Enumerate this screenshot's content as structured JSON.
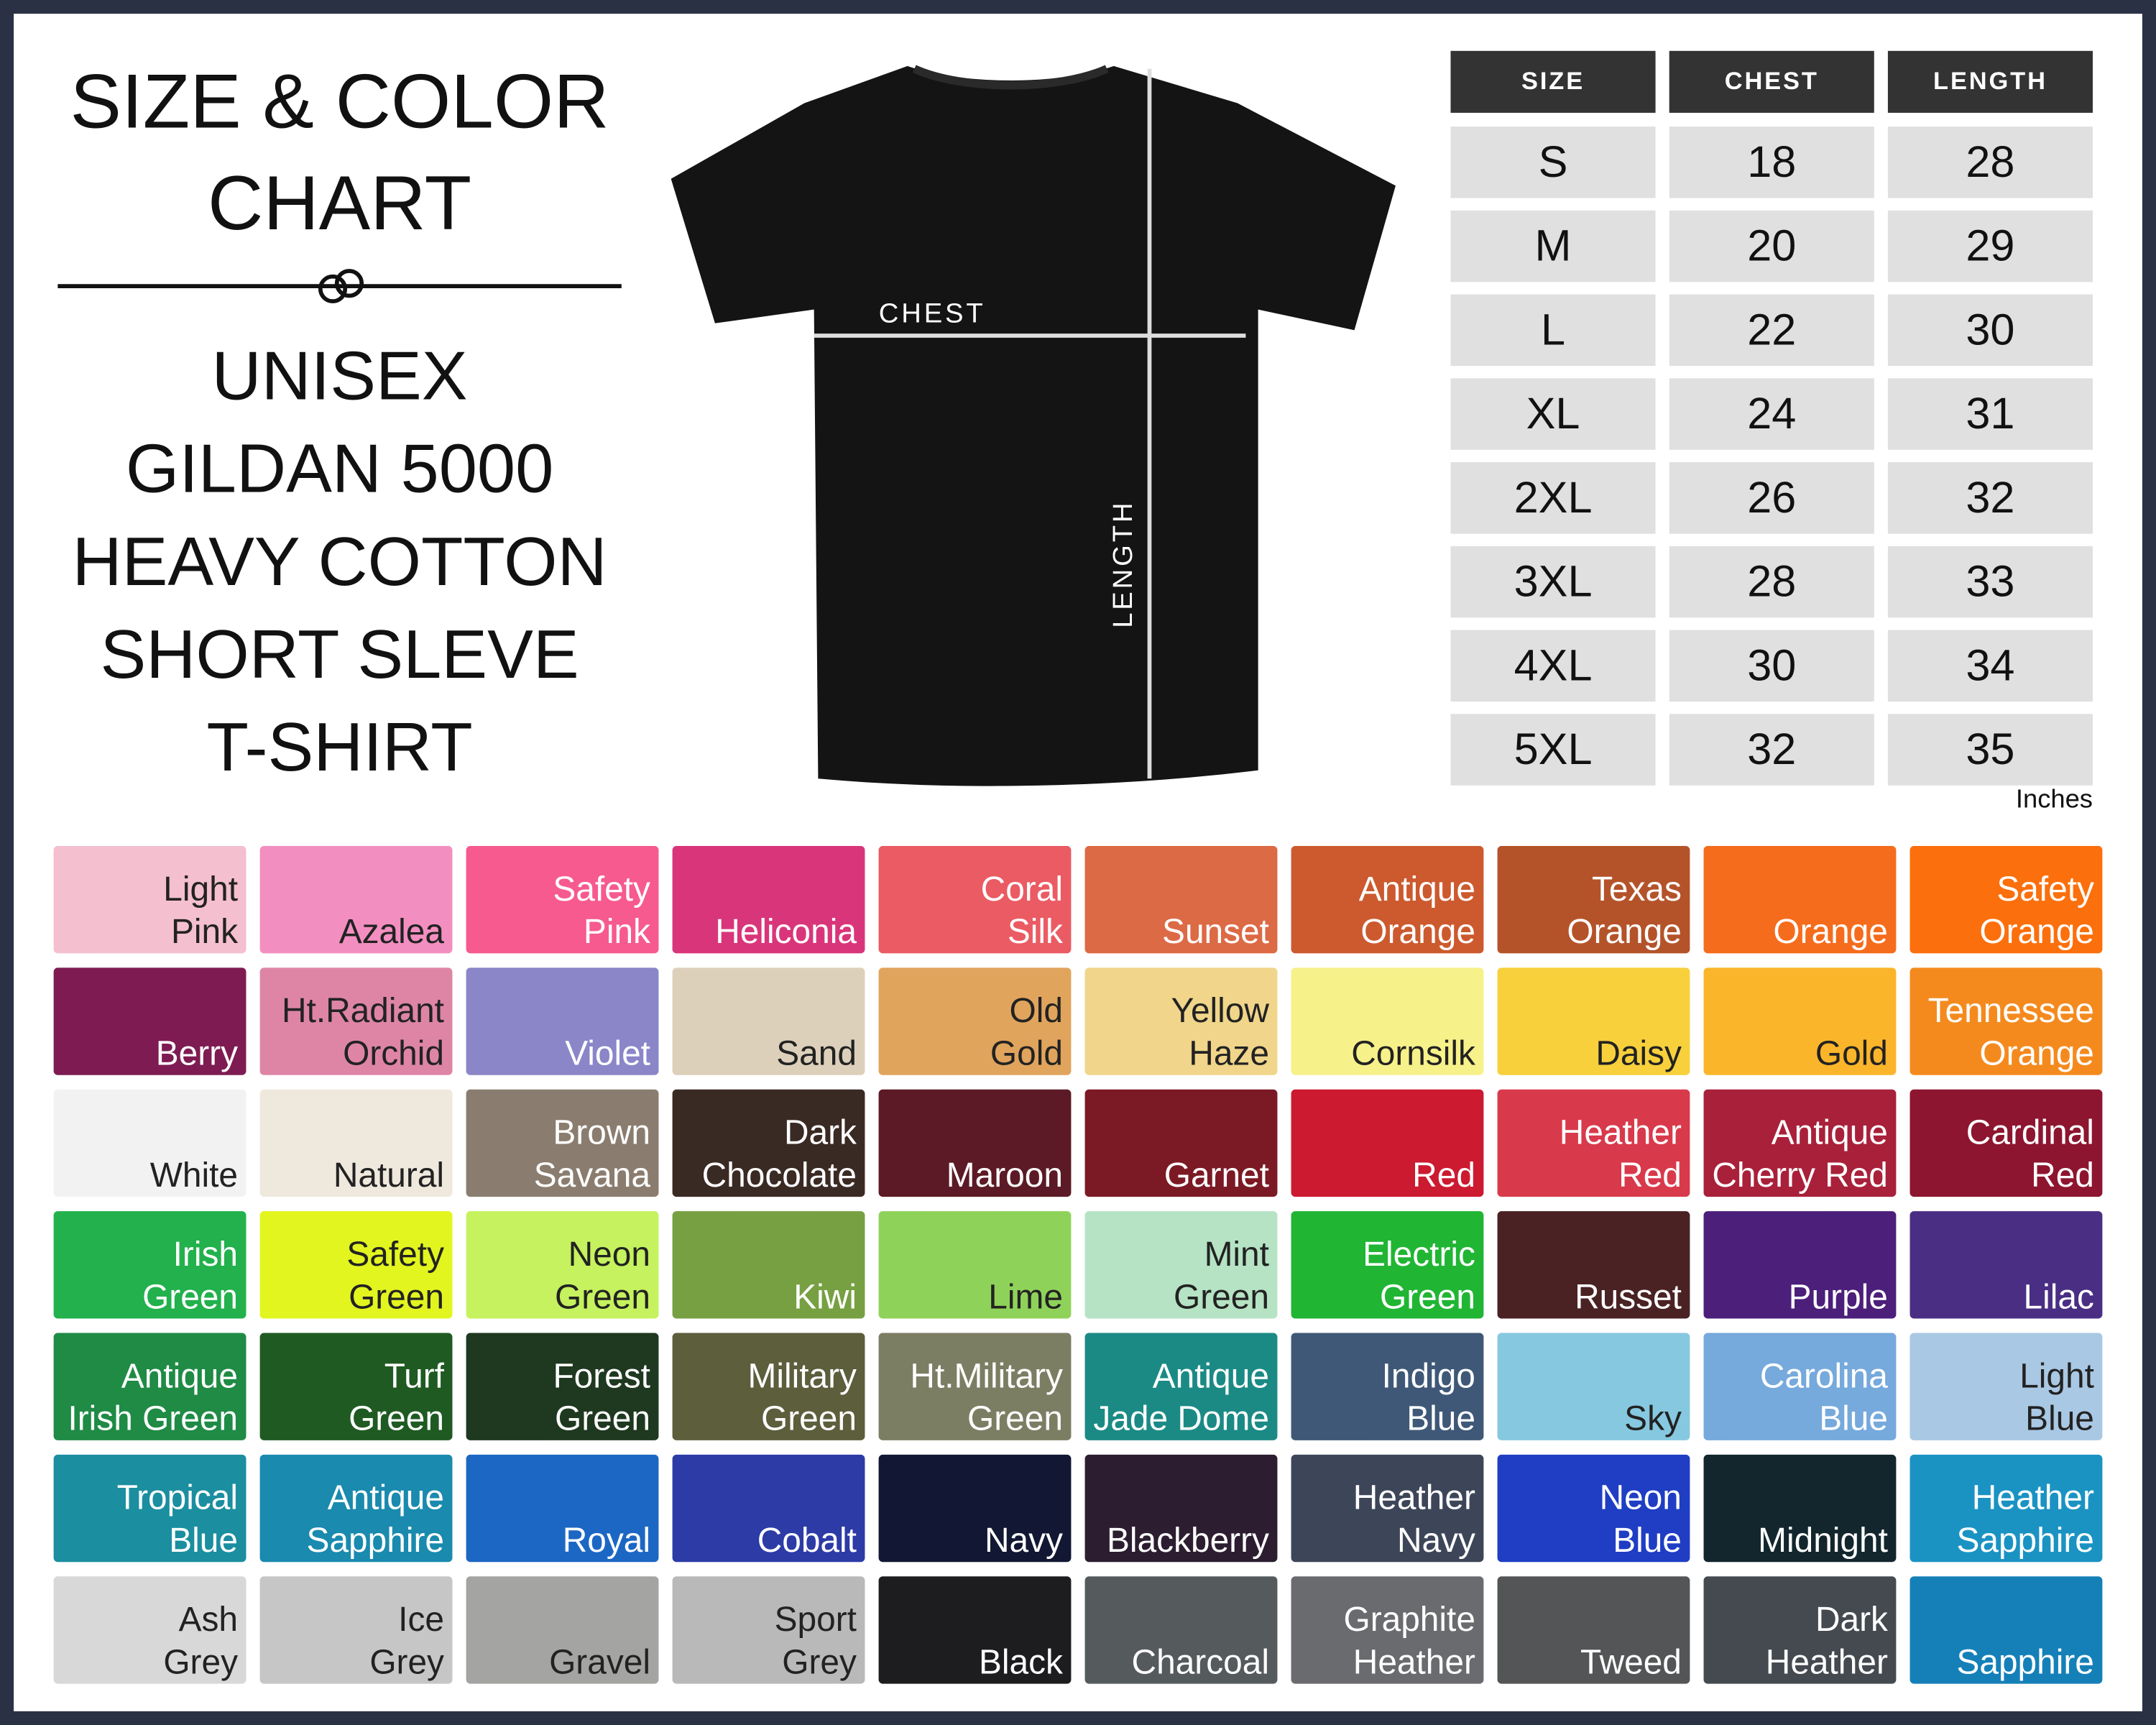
{
  "header": {
    "title": [
      "SIZE & COLOR",
      "CHART"
    ],
    "product": [
      "UNISEX",
      "GILDAN 5000",
      "HEAVY COTTON",
      "SHORT SLEVE",
      "T-SHIRT"
    ]
  },
  "diagram": {
    "chest_label": "CHEST",
    "length_label": "LENGTH"
  },
  "table": {
    "headers": [
      "SIZE",
      "CHEST",
      "LENGTH"
    ],
    "rows": [
      [
        "S",
        18,
        28
      ],
      [
        "M",
        20,
        29
      ],
      [
        "L",
        22,
        30
      ],
      [
        "XL",
        24,
        31
      ],
      [
        "2XL",
        26,
        32
      ],
      [
        "3XL",
        28,
        33
      ],
      [
        "4XL",
        30,
        34
      ],
      [
        "5XL",
        32,
        35
      ]
    ],
    "unit": "Inches"
  },
  "swatches": [
    {
      "name": [
        "Light",
        "Pink"
      ],
      "color": "#f4bfcf"
    },
    {
      "name": [
        "Azalea"
      ],
      "color": "#f38fc0"
    },
    {
      "name": [
        "Safety",
        "Pink"
      ],
      "color": "#f65a8f"
    },
    {
      "name": [
        "Heliconia"
      ],
      "color": "#d9357a"
    },
    {
      "name": [
        "Coral",
        "Silk"
      ],
      "color": "#ea5b63"
    },
    {
      "name": [
        "Sunset"
      ],
      "color": "#dc6a45"
    },
    {
      "name": [
        "Antique",
        "Orange"
      ],
      "color": "#cc5a2e"
    },
    {
      "name": [
        "Texas",
        "Orange"
      ],
      "color": "#b4532a"
    },
    {
      "name": [
        "Orange"
      ],
      "color": "#f56c1c"
    },
    {
      "name": [
        "Safety",
        "Orange"
      ],
      "color": "#fb6f0c"
    },
    {
      "name": [
        "Berry"
      ],
      "color": "#7e1b52"
    },
    {
      "name": [
        "Ht.Radiant",
        "Orchid"
      ],
      "color": "#de85a6"
    },
    {
      "name": [
        "Violet"
      ],
      "color": "#8a86c8"
    },
    {
      "name": [
        "Sand"
      ],
      "color": "#ddd0bb"
    },
    {
      "name": [
        "Old",
        "Gold"
      ],
      "color": "#e0a45c"
    },
    {
      "name": [
        "Yellow",
        "Haze"
      ],
      "color": "#f0d58a"
    },
    {
      "name": [
        "Cornsilk"
      ],
      "color": "#f7f18a"
    },
    {
      "name": [
        "Daisy"
      ],
      "color": "#f7d03c"
    },
    {
      "name": [
        "Gold"
      ],
      "color": "#fbb52a"
    },
    {
      "name": [
        "Tennessee",
        "Orange"
      ],
      "color": "#f48a1e"
    },
    {
      "name": [
        "White"
      ],
      "color": "#f2f2f2"
    },
    {
      "name": [
        "Natural"
      ],
      "color": "#efe9dd"
    },
    {
      "name": [
        "Brown",
        "Savana"
      ],
      "color": "#8a7d6f"
    },
    {
      "name": [
        "Dark",
        "Chocolate"
      ],
      "color": "#3a2a24"
    },
    {
      "name": [
        "Maroon"
      ],
      "color": "#5b1a25"
    },
    {
      "name": [
        "Garnet"
      ],
      "color": "#7b1a24"
    },
    {
      "name": [
        "Red"
      ],
      "color": "#cc1a30"
    },
    {
      "name": [
        "Heather",
        "Red"
      ],
      "color": "#d83a4b"
    },
    {
      "name": [
        "Antique",
        "Cherry Red"
      ],
      "color": "#a9203a"
    },
    {
      "name": [
        "Cardinal",
        "Red"
      ],
      "color": "#8d1530"
    },
    {
      "name": [
        "Irish",
        "Green"
      ],
      "color": "#22b14c"
    },
    {
      "name": [
        "Safety",
        "Green"
      ],
      "color": "#e3f51f"
    },
    {
      "name": [
        "Neon",
        "Green"
      ],
      "color": "#c5f25e"
    },
    {
      "name": [
        "Kiwi"
      ],
      "color": "#77a042"
    },
    {
      "name": [
        "Lime"
      ],
      "color": "#8fd25a"
    },
    {
      "name": [
        "Mint",
        "Green"
      ],
      "color": "#b5e3c4"
    },
    {
      "name": [
        "Electric",
        "Green"
      ],
      "color": "#21b534"
    },
    {
      "name": [
        "Russet"
      ],
      "color": "#4a2224"
    },
    {
      "name": [
        "Purple"
      ],
      "color": "#4b1f7a"
    },
    {
      "name": [
        "Lilac"
      ],
      "color": "#4a2e84"
    },
    {
      "name": [
        "Antique",
        "Irish Green"
      ],
      "color": "#1f8b45"
    },
    {
      "name": [
        "Turf",
        "Green"
      ],
      "color": "#1f5a22"
    },
    {
      "name": [
        "Forest",
        "Green"
      ],
      "color": "#1f3820"
    },
    {
      "name": [
        "Military",
        "Green"
      ],
      "color": "#5c5e3c"
    },
    {
      "name": [
        "Ht.Military",
        "Green"
      ],
      "color": "#7c7e64"
    },
    {
      "name": [
        "Antique",
        "Jade Dome"
      ],
      "color": "#1b8a85"
    },
    {
      "name": [
        "Indigo",
        "Blue"
      ],
      "color": "#3f5877"
    },
    {
      "name": [
        "Sky"
      ],
      "color": "#86c8e0"
    },
    {
      "name": [
        "Carolina",
        "Blue"
      ],
      "color": "#76a9dc"
    },
    {
      "name": [
        "Light",
        "Blue"
      ],
      "color": "#a9c8e4"
    },
    {
      "name": [
        "Tropical",
        "Blue"
      ],
      "color": "#1b8ea0"
    },
    {
      "name": [
        "Antique",
        "Sapphire"
      ],
      "color": "#1a8aae"
    },
    {
      "name": [
        "Royal"
      ],
      "color": "#1d67c4"
    },
    {
      "name": [
        "Cobalt"
      ],
      "color": "#2c3ba6"
    },
    {
      "name": [
        "Navy"
      ],
      "color": "#121733"
    },
    {
      "name": [
        "Blackberry"
      ],
      "color": "#2c1e30"
    },
    {
      "name": [
        "Heather",
        "Navy"
      ],
      "color": "#3d4659"
    },
    {
      "name": [
        "Neon",
        "Blue"
      ],
      "color": "#1f3ec4"
    },
    {
      "name": [
        "Midnight"
      ],
      "color": "#13262d"
    },
    {
      "name": [
        "Heather",
        "Sapphire"
      ],
      "color": "#1a93c3"
    },
    {
      "name": [
        "Ash",
        "Grey"
      ],
      "color": "#d8d8d8"
    },
    {
      "name": [
        "Ice",
        "Grey"
      ],
      "color": "#c6c6c6"
    },
    {
      "name": [
        "Gravel"
      ],
      "color": "#a4a4a2"
    },
    {
      "name": [
        "Sport",
        "Grey"
      ],
      "color": "#b9b9b9"
    },
    {
      "name": [
        "Black"
      ],
      "color": "#1d1d1f"
    },
    {
      "name": [
        "Charcoal"
      ],
      "color": "#555a5d"
    },
    {
      "name": [
        "Graphite",
        "Heather"
      ],
      "color": "#6a6b6e"
    },
    {
      "name": [
        "Tweed"
      ],
      "color": "#545556"
    },
    {
      "name": [
        "Dark",
        "Heather"
      ],
      "color": "#454a50"
    },
    {
      "name": [
        "Sapphire"
      ],
      "color": "#1580b8"
    }
  ]
}
